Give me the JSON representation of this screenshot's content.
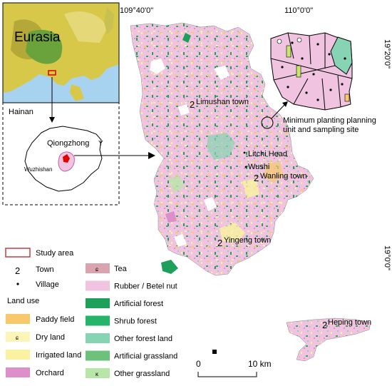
{
  "coords": {
    "lon_left": "109°40'0\"",
    "lon_right": "110°0'0\"",
    "lat_top": "19°20'0\"",
    "lat_bottom": "19°0'0\""
  },
  "inset": {
    "continent": "Eurasia",
    "island": "Hainan",
    "county": "Qiongzhong",
    "city": "Wuzhishan"
  },
  "towns": [
    {
      "symbol": "2",
      "name": "Limushan town"
    },
    {
      "symbol": "2",
      "name": "Wanling town"
    },
    {
      "symbol": "2",
      "name": "Yingeng town"
    },
    {
      "symbol": "2",
      "name": "Heping town"
    }
  ],
  "villages": [
    {
      "name": "Litchi Head"
    },
    {
      "name": "Wushi"
    }
  ],
  "callout": {
    "line1": "Minimum planting planning",
    "line2": "unit and sampling site"
  },
  "legend": {
    "study_area": "Study area",
    "town_symbol": "2",
    "town": "Town",
    "village": "Village",
    "land_use_title": "Land use",
    "left_items": [
      {
        "label": "Paddy field",
        "color": "#f7c96a",
        "glyph": ""
      },
      {
        "label": "Dry land",
        "color": "#fbf6b8",
        "glyph": "ɕ"
      },
      {
        "label": "Irrigated land",
        "color": "#faf2a0",
        "glyph": ""
      },
      {
        "label": "Orchard",
        "color": "#dc8fc8",
        "glyph": ""
      }
    ],
    "right_items": [
      {
        "label": "Tea",
        "color": "#d9a3b0",
        "glyph": "ɕ"
      },
      {
        "label": "Rubber / Betel nut",
        "color": "#f0c4e0",
        "glyph": ""
      },
      {
        "label": "Artificial forest",
        "color": "#1fa05a",
        "glyph": ""
      },
      {
        "label": "Shrub forest",
        "color": "#26b46a",
        "glyph": ""
      },
      {
        "label": "Other forest land",
        "color": "#86d4b4",
        "glyph": ""
      },
      {
        "label": "Artificial grassland",
        "color": "#6cc27a",
        "glyph": ""
      },
      {
        "label": "Other grassland",
        "color": "#b8e6a8",
        "glyph": "ĸ"
      }
    ]
  },
  "scale": {
    "zero": "0",
    "ten": "10 km"
  }
}
